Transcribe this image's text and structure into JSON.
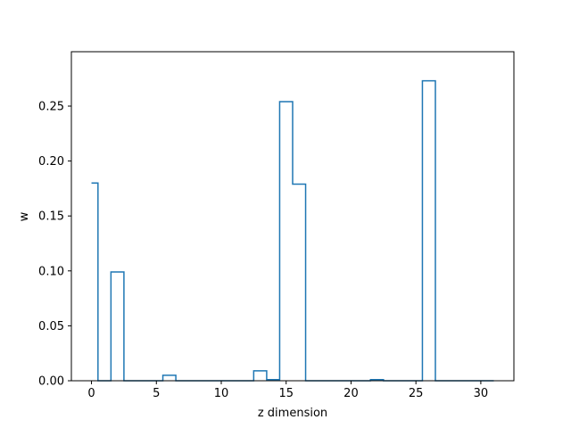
{
  "chart_data": {
    "type": "line",
    "drawstyle": "steps-mid",
    "title": "",
    "xlabel": "z dimension",
    "ylabel": "w",
    "xlim": [
      -1.55,
      32.55
    ],
    "ylim": [
      0,
      0.2995
    ],
    "xticks": [
      0,
      5,
      10,
      15,
      20,
      25,
      30
    ],
    "xtick_labels": [
      "0",
      "5",
      "10",
      "15",
      "20",
      "25",
      "30"
    ],
    "yticks": [
      0.0,
      0.05,
      0.1,
      0.15,
      0.2,
      0.25
    ],
    "ytick_labels": [
      "0.00",
      "0.05",
      "0.10",
      "0.15",
      "0.20",
      "0.25"
    ],
    "grid": false,
    "legend": false,
    "line_color": "#1f77b4",
    "series": [
      {
        "x": [
          0,
          1,
          2,
          3,
          4,
          5,
          6,
          7,
          8,
          9,
          10,
          11,
          12,
          13,
          14,
          15,
          16,
          17,
          18,
          19,
          20,
          21,
          22,
          23,
          24,
          25,
          26,
          27,
          28,
          29,
          30,
          31
        ],
        "values": [
          0.18,
          0.0,
          0.099,
          0.0,
          0.0,
          0.0,
          0.005,
          0.0,
          0.0,
          0.0,
          0.0,
          0.0,
          0.0,
          0.009,
          0.001,
          0.254,
          0.179,
          0.0,
          0.0,
          0.0,
          0.0,
          0.0,
          0.001,
          0.0,
          0.0,
          0.0,
          0.273,
          0.0,
          0.0,
          0.0,
          0.0,
          0.0
        ]
      }
    ]
  }
}
